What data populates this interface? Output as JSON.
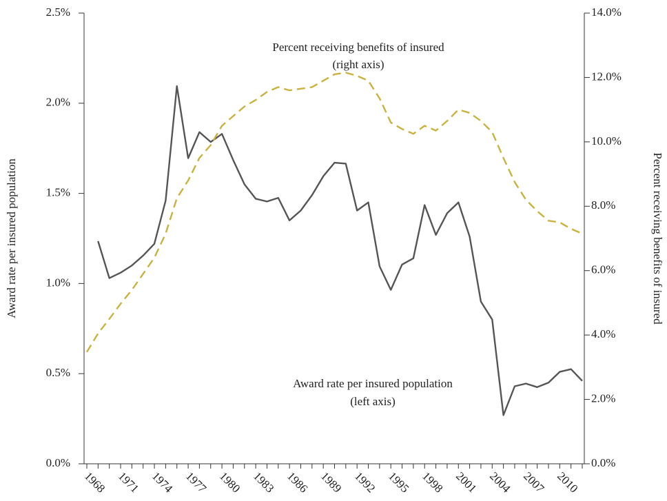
{
  "chart_data": {
    "type": "line",
    "annotations": [
      "Percent receiving benefits of insured",
      "(right axis)",
      "Award rate per insured population",
      "(left axis)"
    ],
    "y_label": "Award rate per insured population",
    "y2_label": "Percent receiving benefits of insured",
    "categories": [
      null,
      "1968",
      null,
      null,
      "1971",
      null,
      null,
      "1974",
      null,
      null,
      "1977",
      null,
      null,
      "1980",
      null,
      null,
      "1983",
      null,
      null,
      "1986",
      null,
      null,
      "1989",
      null,
      null,
      "1992",
      null,
      null,
      "1995",
      null,
      null,
      "1998",
      null,
      null,
      "2001",
      null,
      null,
      "2004",
      null,
      null,
      "2007",
      null,
      null,
      "2010",
      null
    ],
    "series": [
      {
        "color": "#555555",
        "dash": false,
        "values": [
          null,
          1.235,
          1.03,
          1.06,
          1.1,
          1.155,
          1.22,
          1.46,
          2.095,
          1.695,
          1.84,
          1.785,
          1.83,
          1.685,
          1.55,
          1.47,
          1.455,
          1.475,
          1.35,
          1.405,
          1.49,
          1.595,
          1.67,
          1.665,
          1.405,
          1.45,
          1.095,
          0.965,
          1.105,
          1.14,
          1.435,
          1.27,
          1.39,
          1.45,
          1.26,
          0.9,
          0.8,
          0.27,
          0.43,
          0.445,
          0.425,
          0.45,
          0.51,
          0.525,
          0.46
        ]
      },
      {
        "color": "#c9b23e",
        "dash": true,
        "axis": "y2",
        "values": [
          3.47,
          4.05,
          4.5,
          4.97,
          5.4,
          5.9,
          6.4,
          7.15,
          8.25,
          8.8,
          9.5,
          9.9,
          10.5,
          10.8,
          11.1,
          11.3,
          11.55,
          11.7,
          11.6,
          11.65,
          11.7,
          11.9,
          12.1,
          12.15,
          12.05,
          11.9,
          11.35,
          10.6,
          10.4,
          10.25,
          10.5,
          10.35,
          10.65,
          11.0,
          10.9,
          10.65,
          10.3,
          9.5,
          8.75,
          8.2,
          7.85,
          7.55,
          7.5,
          7.3,
          7.15
        ]
      }
    ],
    "ylim": [
      0,
      2.5
    ],
    "yticks": [
      {
        "value": 0,
        "label": "0.0%"
      },
      {
        "value": 0.5,
        "label": "0.5%"
      },
      {
        "value": 1,
        "label": "1.0%"
      },
      {
        "value": 1.5,
        "label": "1.5%"
      },
      {
        "value": 2,
        "label": "2.0%"
      },
      {
        "value": 2.5,
        "label": "2.5%"
      }
    ],
    "y2lim": [
      0,
      14
    ],
    "y2ticks": [
      {
        "value": 0,
        "label": "0.0%"
      },
      {
        "value": 2,
        "label": "2.0%"
      },
      {
        "value": 4,
        "label": "4.0%"
      },
      {
        "value": 6,
        "label": "6.0%"
      },
      {
        "value": 8,
        "label": "8.0%"
      },
      {
        "value": 10,
        "label": "10.0%"
      },
      {
        "value": 12,
        "label": "12.0%"
      },
      {
        "value": 14,
        "label": "14.0%"
      }
    ]
  }
}
